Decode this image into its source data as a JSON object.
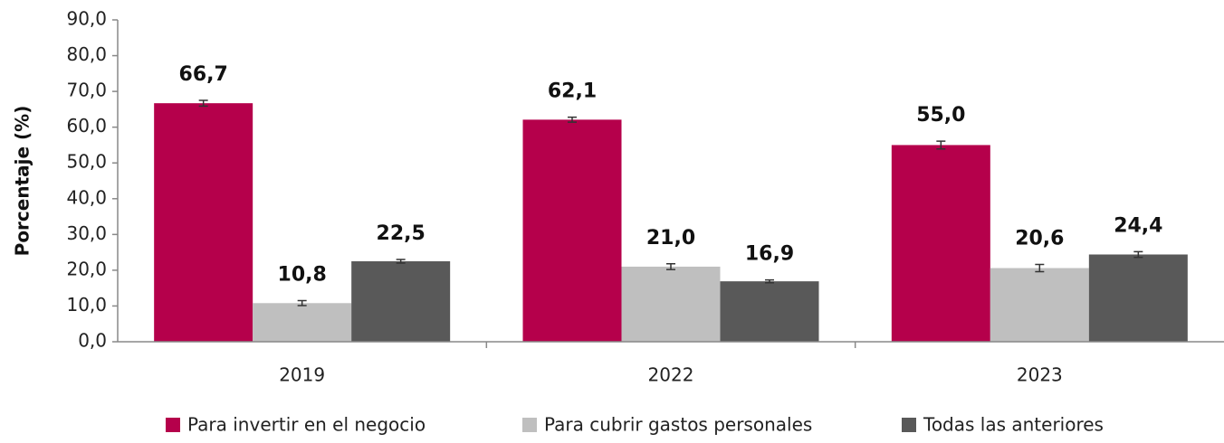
{
  "chart_data": {
    "type": "bar",
    "y_label": "Porcentaje (%)",
    "categories": [
      "2019",
      "2022",
      "2023"
    ],
    "series": [
      {
        "name": "Para invertir en el negocio",
        "color": "#b5004b",
        "values": [
          66.7,
          62.1,
          55.0
        ],
        "value_labels": [
          "66,7",
          "62,1",
          "55,0"
        ],
        "errors": [
          0.8,
          0.7,
          1.1
        ]
      },
      {
        "name": "Para cubrir gastos personales",
        "color": "#bfbfbf",
        "values": [
          10.8,
          21.0,
          20.6
        ],
        "value_labels": [
          "10,8",
          "21,0",
          "20,6"
        ],
        "errors": [
          0.7,
          0.8,
          1.0
        ]
      },
      {
        "name": "Todas las anteriores",
        "color": "#595959",
        "values": [
          22.5,
          16.9,
          24.4
        ],
        "value_labels": [
          "22,5",
          "16,9",
          "24,4"
        ],
        "errors": [
          0.5,
          0.4,
          0.8
        ]
      }
    ],
    "ylim": [
      0,
      90
    ],
    "yticks": [
      {
        "value": 0,
        "label": "0,0"
      },
      {
        "value": 10,
        "label": "10,0"
      },
      {
        "value": 20,
        "label": "20,0"
      },
      {
        "value": 30,
        "label": "30,0"
      },
      {
        "value": 40,
        "label": "40,0"
      },
      {
        "value": 50,
        "label": "50,0"
      },
      {
        "value": 60,
        "label": "60,0"
      },
      {
        "value": 70,
        "label": "70,0"
      },
      {
        "value": 80,
        "label": "80,0"
      },
      {
        "value": 90,
        "label": "90,0"
      }
    ],
    "grid": false,
    "legend": "bottom"
  }
}
